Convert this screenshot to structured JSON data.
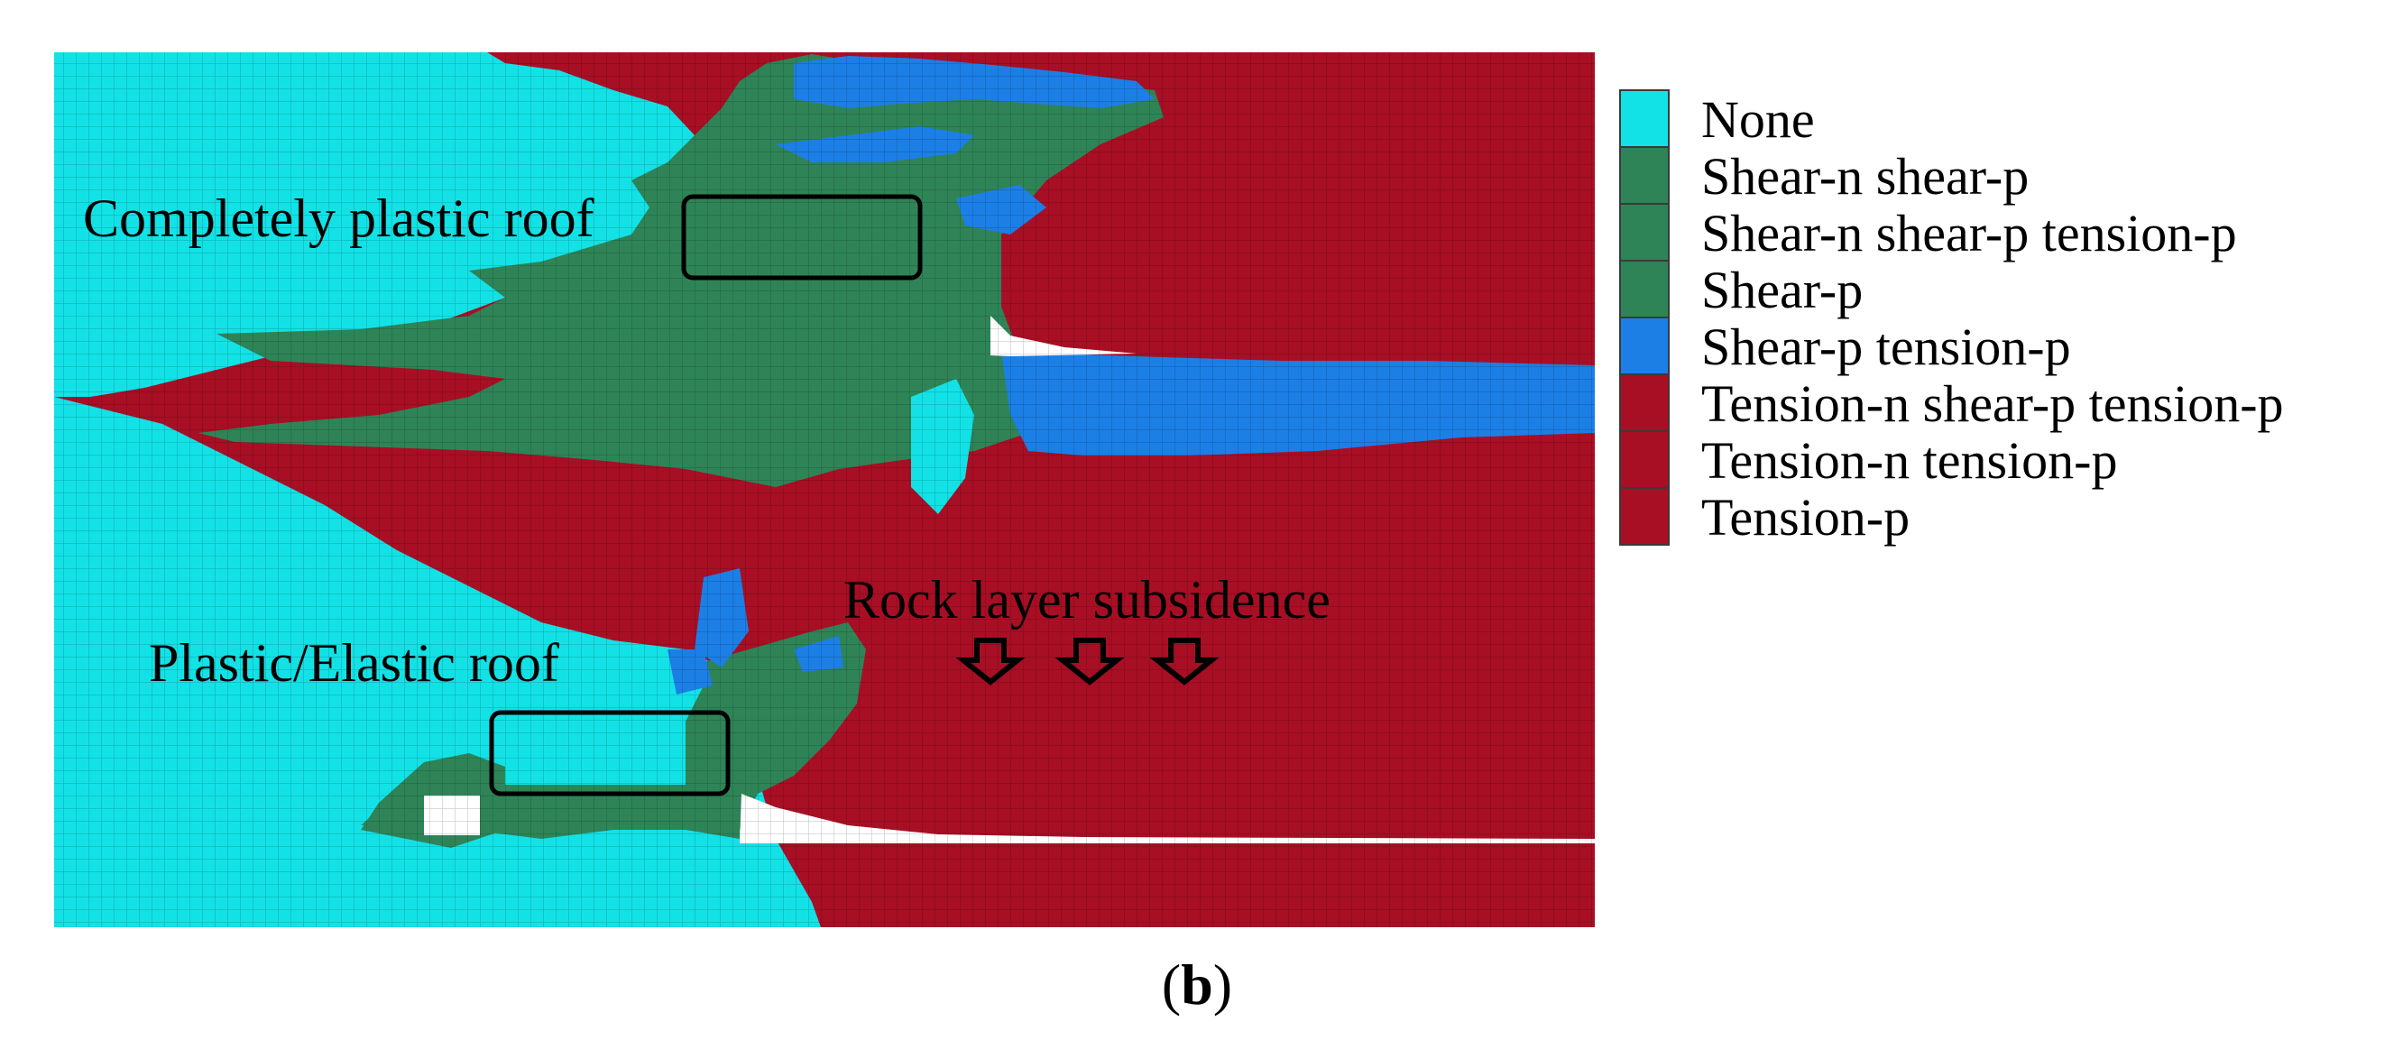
{
  "colors": {
    "none": "#12e2e6",
    "shear": "#2e8457",
    "shear_tension": "#1c7fe6",
    "tension": "#a80f24",
    "grid_light": "#0aa3a8",
    "grid_dark": "#1f5f3d"
  },
  "legend": [
    {
      "label": "None",
      "color": "#12e2e6"
    },
    {
      "label": "Shear-n shear-p",
      "color": "#2e8457"
    },
    {
      "label": "Shear-n shear-p tension-p",
      "color": "#2e8457"
    },
    {
      "label": "Shear-p",
      "color": "#2e8457"
    },
    {
      "label": "Shear-p tension-p",
      "color": "#1c7fe6"
    },
    {
      "label": "Tension-n shear-p tension-p",
      "color": "#a80f24"
    },
    {
      "label": "Tension-n tension-p",
      "color": "#a80f24"
    },
    {
      "label": "Tension-p",
      "color": "#a80f24"
    }
  ],
  "annotations": {
    "completely_plastic_roof": "Completely plastic roof",
    "plastic_elastic_roof": "Plastic/Elastic roof",
    "rock_layer_subsidence": "Rock layer subsidence"
  },
  "caption": {
    "open": "(",
    "letter": "b",
    "close": ")"
  },
  "icons": {
    "subsidence_arrow": "down-arrow-icon"
  }
}
